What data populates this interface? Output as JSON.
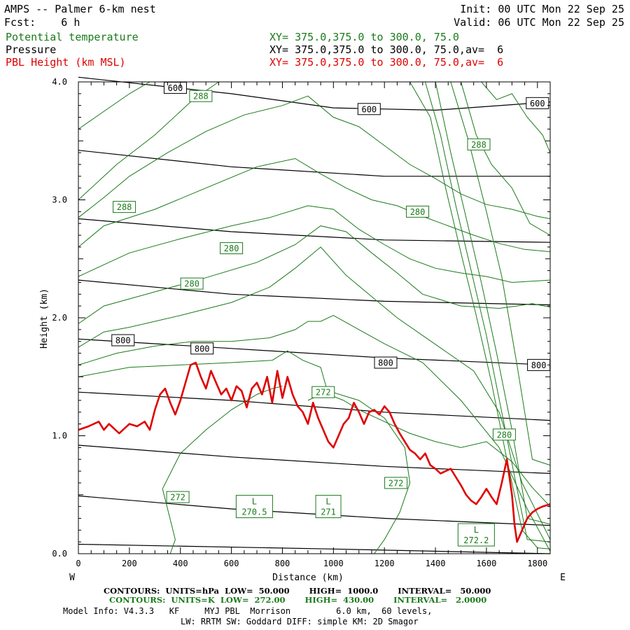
{
  "header": {
    "title": "AMPS -- Palmer 6-km nest",
    "fcst": "Fcst:    6 h",
    "init": "Init: 00 UTC Mon 22 Sep 25",
    "valid": "Valid: 06 UTC Mon 22 Sep 25",
    "fields": [
      {
        "name": "Potential temperature",
        "xy": "XY= 375.0,375.0 to 300.0, 75.0",
        "color": "#1a7a1a"
      },
      {
        "name": "Pressure",
        "xy": "XY= 375.0,375.0 to 300.0, 75.0,av=  6",
        "color": "#000000"
      },
      {
        "name": "PBL Height (km MSL)",
        "xy": "XY= 375.0,375.0 to 300.0, 75.0,av=  6",
        "color": "#e00000"
      }
    ]
  },
  "chart_data": {
    "type": "line",
    "xlabel": "Distance (km)",
    "ylabel": "Height (km)",
    "xlim": [
      0,
      1850
    ],
    "ylim": [
      0,
      4.0
    ],
    "x_ticks": [
      0,
      200,
      400,
      600,
      800,
      1000,
      1200,
      1400,
      1600,
      1800
    ],
    "y_ticks": [
      0.0,
      1.0,
      2.0,
      3.0,
      4.0
    ],
    "x_end_labels": {
      "left": "W",
      "right": "E"
    },
    "colors": {
      "pressure": "#000000",
      "theta": "#1a7a1a",
      "pbl": "#e00000"
    },
    "pressure_lines": [
      {
        "x": [
          0,
          1000,
          1850
        ],
        "y": [
          0.08,
          0.04,
          0.0
        ]
      },
      {
        "x": [
          0,
          600,
          1200,
          1850
        ],
        "y": [
          0.49,
          0.38,
          0.3,
          0.24
        ]
      },
      {
        "x": [
          0,
          600,
          1200,
          1850
        ],
        "y": [
          0.92,
          0.82,
          0.74,
          0.68
        ]
      },
      {
        "x": [
          0,
          600,
          1200,
          1850
        ],
        "y": [
          1.37,
          1.3,
          1.2,
          1.13
        ]
      },
      {
        "x": [
          0,
          600,
          1200,
          1850
        ],
        "y": [
          1.82,
          1.74,
          1.66,
          1.6
        ]
      },
      {
        "x": [
          0,
          600,
          1200,
          1850
        ],
        "y": [
          2.32,
          2.2,
          2.14,
          2.11
        ]
      },
      {
        "x": [
          0,
          600,
          1200,
          1850
        ],
        "y": [
          2.84,
          2.73,
          2.66,
          2.64
        ]
      },
      {
        "x": [
          0,
          600,
          1200,
          1850
        ],
        "y": [
          3.42,
          3.28,
          3.2,
          3.2
        ]
      },
      {
        "x": [
          0,
          600,
          1000,
          1400,
          1850
        ],
        "y": [
          4.04,
          3.9,
          3.78,
          3.76,
          3.83
        ]
      }
    ],
    "pressure_labels": [
      {
        "text": "600",
        "x": 380,
        "y": 3.95
      },
      {
        "text": "600",
        "x": 1140,
        "y": 3.77
      },
      {
        "text": "600",
        "x": 1800,
        "y": 3.82
      },
      {
        "text": "800",
        "x": 175,
        "y": 1.81
      },
      {
        "text": "800",
        "x": 485,
        "y": 1.74
      },
      {
        "text": "800",
        "x": 1205,
        "y": 1.62
      },
      {
        "text": "800",
        "x": 1805,
        "y": 1.6
      }
    ],
    "theta_lines": [
      {
        "x": [
          360,
          380,
          330,
          400,
          500,
          600,
          700,
          760,
          800
        ],
        "y": [
          0.0,
          0.12,
          0.55,
          0.85,
          1.05,
          1.22,
          1.35,
          1.4,
          1.42
        ]
      },
      {
        "x": [
          900,
          980,
          1100,
          1200,
          1280,
          1300,
          1260,
          1200,
          1160
        ],
        "y": [
          1.3,
          1.38,
          1.3,
          1.15,
          0.9,
          0.6,
          0.35,
          0.12,
          0.0
        ]
      },
      {
        "x": [
          0,
          200,
          400,
          600,
          760,
          820,
          880,
          950,
          980,
          1040,
          1100,
          1200,
          1300,
          1400,
          1500,
          1600,
          1700,
          1780,
          1850
        ],
        "y": [
          1.5,
          1.58,
          1.6,
          1.62,
          1.64,
          1.72,
          1.64,
          1.58,
          1.35,
          1.3,
          1.22,
          1.12,
          1.02,
          0.95,
          0.9,
          0.95,
          0.78,
          0.56,
          0.4
        ]
      },
      {
        "x": [
          0,
          150,
          300,
          450,
          600,
          750,
          850,
          900,
          950,
          1000,
          1100,
          1200,
          1350,
          1500,
          1650,
          1760,
          1850
        ],
        "y": [
          1.6,
          1.7,
          1.76,
          1.8,
          1.8,
          1.83,
          1.9,
          1.97,
          1.97,
          2.02,
          1.9,
          1.78,
          1.62,
          1.3,
          0.9,
          0.38,
          0.02
        ]
      },
      {
        "x": [
          0,
          100,
          200,
          400,
          600,
          750,
          850,
          950,
          1050,
          1150,
          1250,
          1350,
          1450,
          1550,
          1650,
          1740,
          1850
        ],
        "y": [
          1.75,
          1.88,
          1.92,
          2.02,
          2.13,
          2.26,
          2.42,
          2.6,
          2.36,
          2.18,
          2.0,
          1.85,
          1.7,
          1.55,
          1.2,
          0.6,
          0.12
        ]
      },
      {
        "x": [
          0,
          100,
          300,
          500,
          700,
          850,
          950,
          1050,
          1150,
          1250,
          1350,
          1500,
          1650,
          1720,
          1780,
          1850
        ],
        "y": [
          1.95,
          2.1,
          2.22,
          2.34,
          2.47,
          2.62,
          2.78,
          2.73,
          2.55,
          2.38,
          2.2,
          2.1,
          2.08,
          2.1,
          2.12,
          2.09
        ]
      },
      {
        "x": [
          0,
          100,
          200,
          400,
          600,
          750,
          900,
          1000,
          1100,
          1200,
          1300,
          1400,
          1500,
          1600,
          1700,
          1850
        ],
        "y": [
          2.35,
          2.45,
          2.55,
          2.67,
          2.78,
          2.85,
          2.95,
          2.92,
          2.75,
          2.62,
          2.5,
          2.42,
          2.38,
          2.35,
          2.3,
          2.32
        ]
      },
      {
        "x": [
          0,
          100,
          300,
          500,
          700,
          850,
          950,
          1050,
          1150,
          1250,
          1350,
          1450,
          1550,
          1650,
          1750,
          1850
        ],
        "y": [
          2.6,
          2.78,
          2.92,
          3.1,
          3.28,
          3.35,
          3.22,
          3.1,
          3.0,
          2.95,
          2.86,
          2.78,
          2.7,
          2.63,
          2.58,
          2.56
        ]
      },
      {
        "x": [
          0,
          100,
          200,
          350,
          500,
          650,
          800,
          900,
          1000,
          1100,
          1200,
          1300,
          1400,
          1500,
          1600,
          1700,
          1800,
          1850
        ],
        "y": [
          2.85,
          3.02,
          3.2,
          3.4,
          3.58,
          3.72,
          3.8,
          3.88,
          3.7,
          3.62,
          3.46,
          3.3,
          3.18,
          3.05,
          2.96,
          2.92,
          2.86,
          2.84
        ]
      },
      {
        "x": [
          0,
          150,
          300,
          450,
          550
        ],
        "y": [
          3.0,
          3.3,
          3.55,
          3.85,
          4.0
        ]
      },
      {
        "x": [
          0,
          100,
          200,
          280
        ],
        "y": [
          3.6,
          3.75,
          3.9,
          4.0
        ]
      },
      {
        "x": [
          1300,
          1380,
          1440,
          1500,
          1560,
          1620,
          1680,
          1740,
          1800,
          1850
        ],
        "y": [
          4.0,
          3.7,
          3.1,
          2.55,
          2.02,
          1.45,
          0.8,
          0.2,
          0.05,
          0.04
        ]
      },
      {
        "x": [
          1360,
          1420,
          1480,
          1540,
          1600,
          1660,
          1720,
          1760,
          1850
        ],
        "y": [
          4.0,
          3.55,
          2.95,
          2.4,
          1.85,
          1.2,
          0.55,
          0.12,
          0.1
        ]
      },
      {
        "x": [
          1400,
          1460,
          1520,
          1580,
          1640,
          1700,
          1760,
          1850
        ],
        "y": [
          4.0,
          3.4,
          2.85,
          2.3,
          1.7,
          1.05,
          0.3,
          0.25
        ]
      },
      {
        "x": [
          1460,
          1530,
          1600,
          1660,
          1720,
          1780,
          1850
        ],
        "y": [
          4.0,
          3.5,
          2.9,
          2.35,
          1.6,
          0.8,
          0.75
        ]
      },
      {
        "x": [
          1500,
          1560,
          1620,
          1700,
          1770,
          1850
        ],
        "y": [
          4.0,
          3.55,
          3.3,
          3.1,
          2.8,
          2.7
        ]
      },
      {
        "x": [
          1580,
          1640,
          1700,
          1760,
          1820,
          1850
        ],
        "y": [
          4.0,
          3.85,
          3.9,
          3.7,
          3.55,
          3.4
        ]
      }
    ],
    "theta_labels": [
      {
        "text": "288",
        "x": 480,
        "y": 3.88
      },
      {
        "text": "288",
        "x": 1570,
        "y": 3.47
      },
      {
        "text": "288",
        "x": 180,
        "y": 2.94
      },
      {
        "text": "280",
        "x": 1330,
        "y": 2.9
      },
      {
        "text": "280",
        "x": 600,
        "y": 2.59
      },
      {
        "text": "280",
        "x": 445,
        "y": 2.29
      },
      {
        "text": "280",
        "x": 1670,
        "y": 1.01
      },
      {
        "text": "272",
        "x": 960,
        "y": 1.37
      },
      {
        "text": "272",
        "x": 1245,
        "y": 0.6
      },
      {
        "text": "272",
        "x": 390,
        "y": 0.48
      }
    ],
    "low_labels": [
      {
        "text": "L",
        "value": "270.5",
        "x": 690,
        "y": 0.4
      },
      {
        "text": "L",
        "value": "271",
        "x": 980,
        "y": 0.4
      },
      {
        "text": "L",
        "value": "272.2",
        "x": 1560,
        "y": 0.16
      }
    ],
    "pbl": {
      "x": [
        0,
        40,
        80,
        100,
        120,
        160,
        200,
        230,
        260,
        280,
        300,
        320,
        340,
        360,
        380,
        400,
        420,
        440,
        460,
        480,
        500,
        520,
        540,
        560,
        580,
        600,
        620,
        640,
        660,
        680,
        700,
        720,
        740,
        760,
        780,
        800,
        820,
        840,
        860,
        880,
        900,
        920,
        940,
        960,
        980,
        1000,
        1020,
        1040,
        1060,
        1080,
        1100,
        1120,
        1140,
        1160,
        1180,
        1200,
        1220,
        1240,
        1260,
        1280,
        1300,
        1320,
        1340,
        1360,
        1380,
        1400,
        1420,
        1440,
        1460,
        1480,
        1500,
        1520,
        1540,
        1560,
        1580,
        1600,
        1620,
        1640,
        1660,
        1680,
        1700,
        1710,
        1720,
        1740,
        1760,
        1780,
        1800,
        1820,
        1850
      ],
      "y": [
        1.05,
        1.08,
        1.12,
        1.05,
        1.1,
        1.02,
        1.1,
        1.08,
        1.12,
        1.05,
        1.22,
        1.35,
        1.4,
        1.28,
        1.18,
        1.3,
        1.45,
        1.6,
        1.62,
        1.5,
        1.4,
        1.55,
        1.45,
        1.35,
        1.4,
        1.3,
        1.42,
        1.38,
        1.24,
        1.4,
        1.45,
        1.35,
        1.5,
        1.28,
        1.55,
        1.32,
        1.5,
        1.35,
        1.25,
        1.2,
        1.1,
        1.28,
        1.15,
        1.05,
        0.95,
        0.9,
        1.0,
        1.1,
        1.15,
        1.28,
        1.2,
        1.1,
        1.2,
        1.22,
        1.18,
        1.25,
        1.2,
        1.1,
        1.02,
        0.95,
        0.88,
        0.85,
        0.8,
        0.85,
        0.75,
        0.72,
        0.68,
        0.7,
        0.72,
        0.65,
        0.58,
        0.5,
        0.45,
        0.42,
        0.48,
        0.55,
        0.48,
        0.42,
        0.6,
        0.8,
        0.5,
        0.25,
        0.1,
        0.2,
        0.3,
        0.35,
        0.38,
        0.4,
        0.42
      ]
    }
  },
  "footer": {
    "black_contours": "CONTOURS:  UNITS=hPa  LOW=  50.000       HIGH=  1000.0       INTERVAL=   50.000",
    "green_contours": "CONTOURS:  UNITS=K  LOW=  272.00       HIGH=  430.00       INTERVAL=   2.0000",
    "model1": "Model Info: V4.3.3   KF     MYJ PBL  Morrison         6.0 km,  60 levels,",
    "model2": "LW: RRTM SW: Goddard DIFF: simple KM: 2D Smagor"
  }
}
